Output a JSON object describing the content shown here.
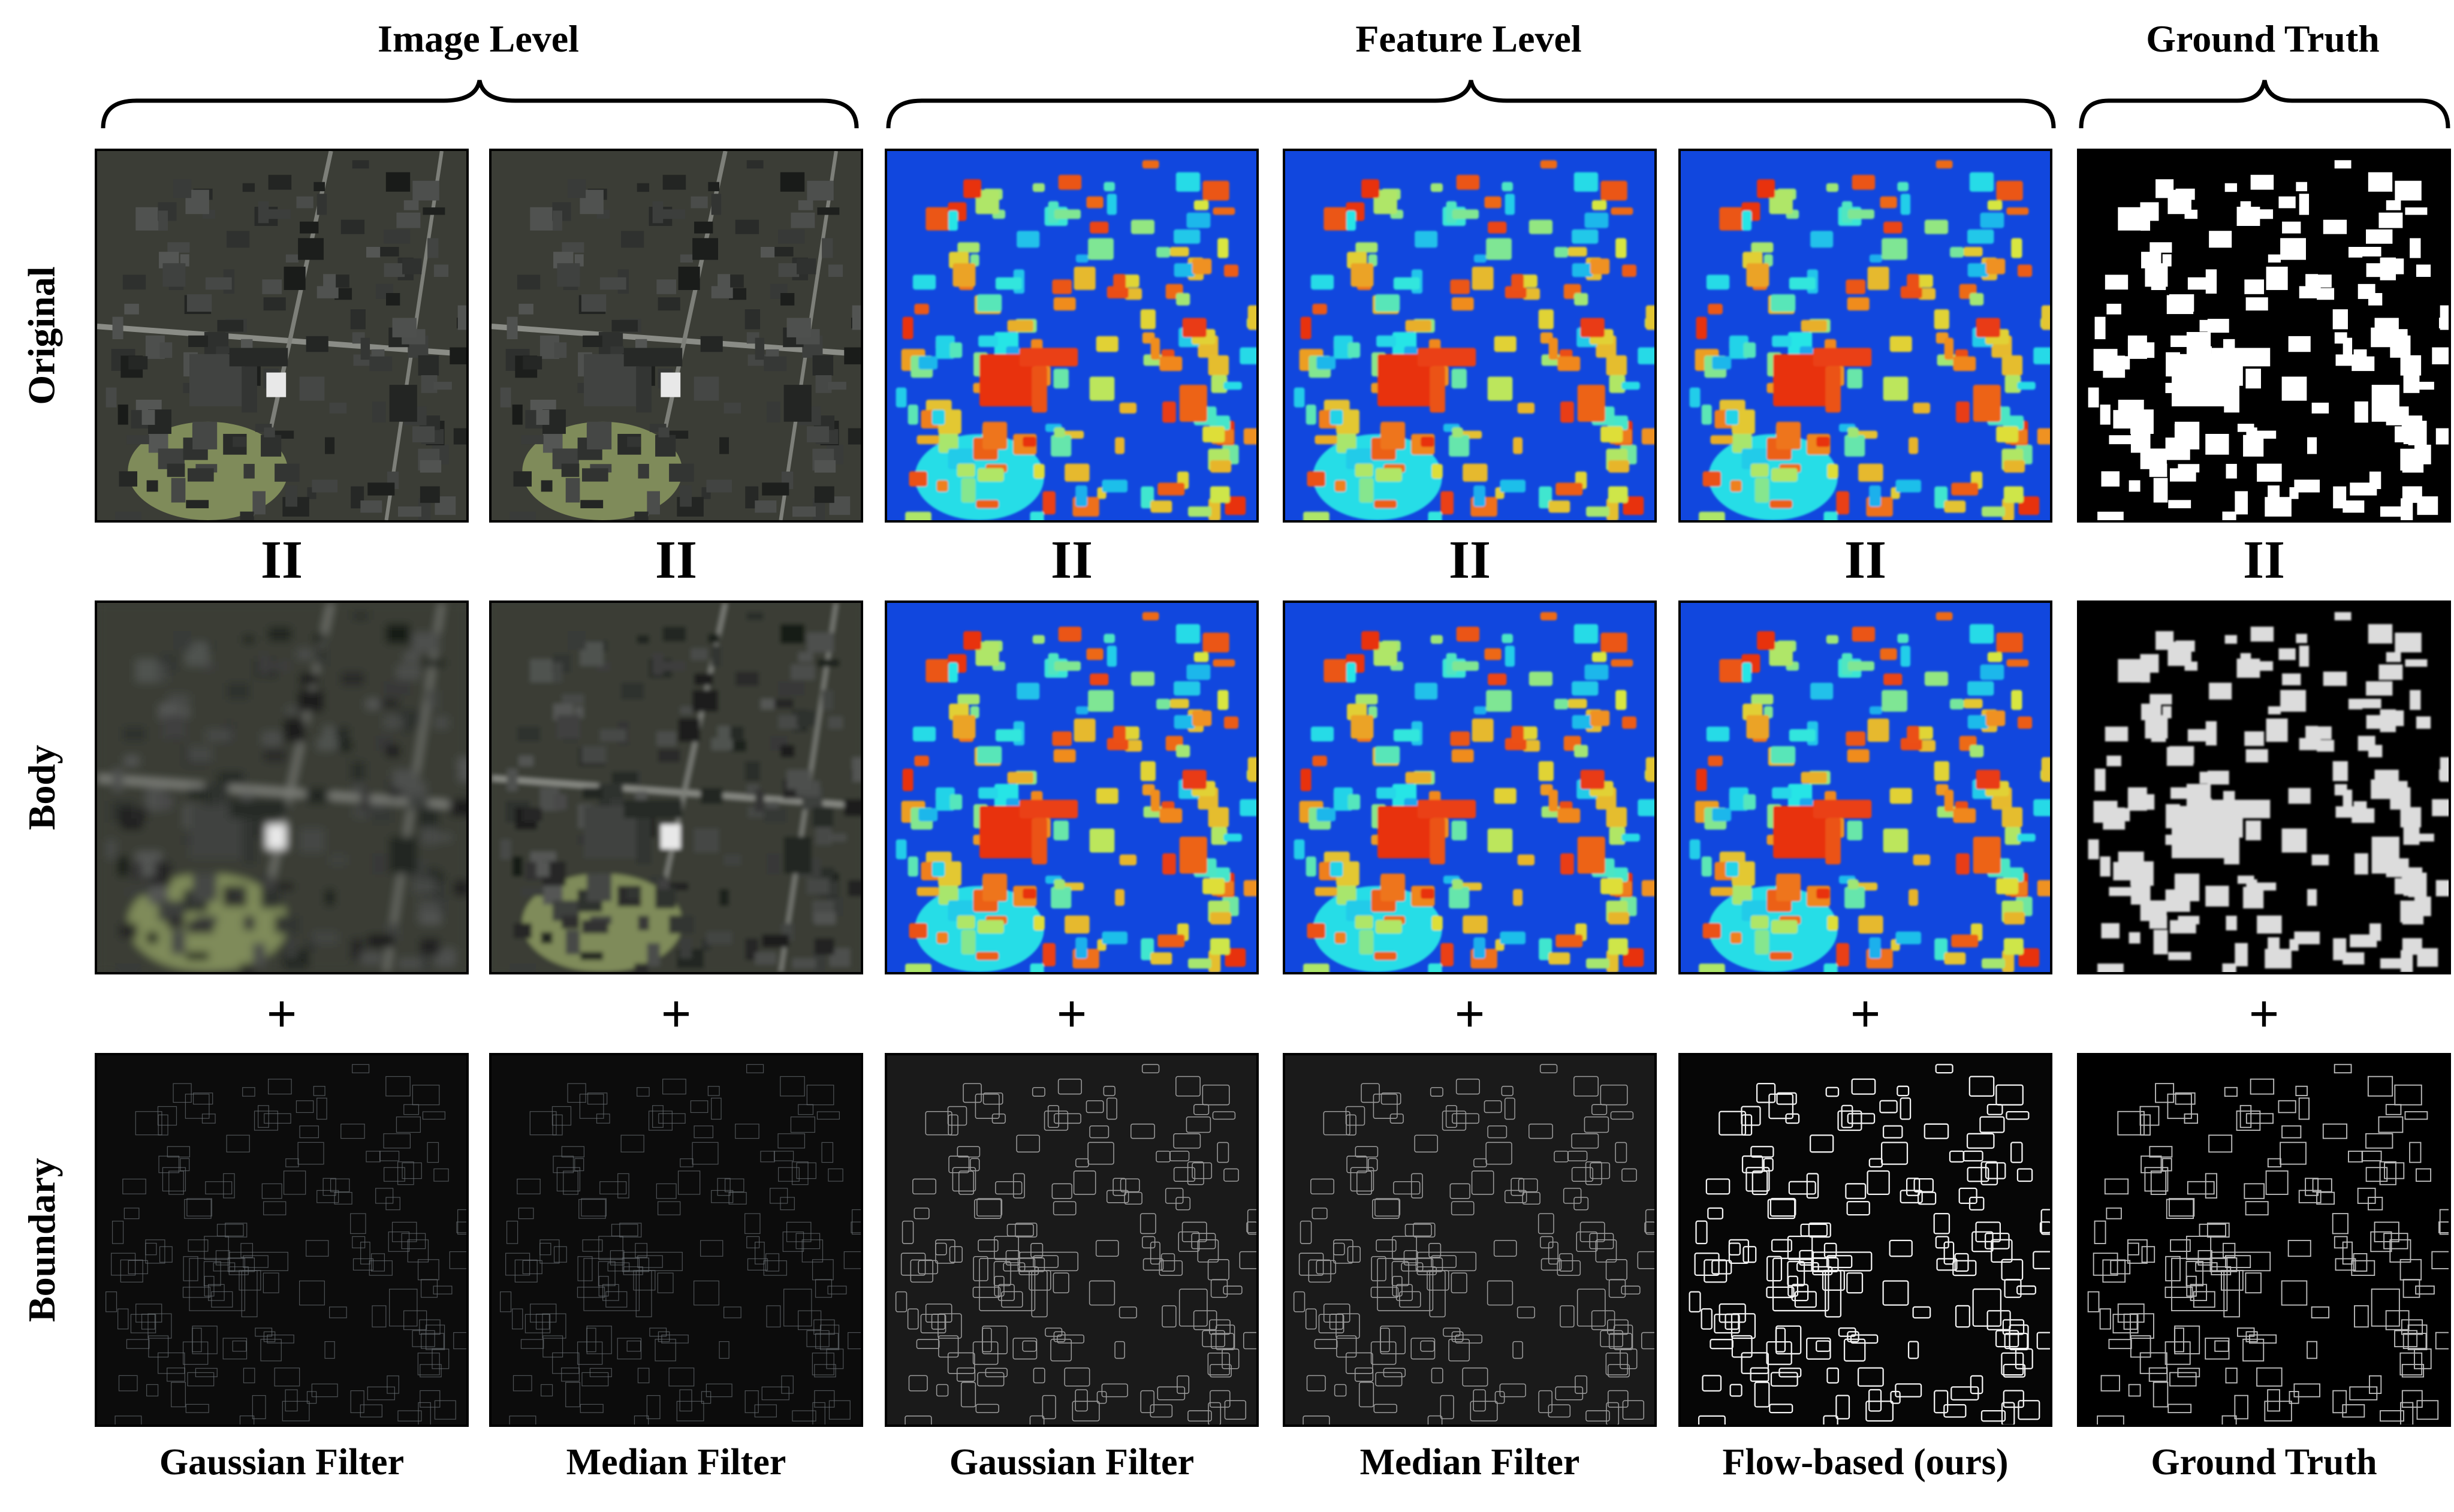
{
  "group_titles": {
    "image_level": "Image Level",
    "feature_level": "Feature Level",
    "ground_truth": "Ground Truth"
  },
  "row_labels": {
    "original": "Original",
    "body": "Body",
    "boundary": "Boundary"
  },
  "operators": {
    "equals": "II",
    "plus": "+"
  },
  "column_labels": {
    "gaussian_image": "Gaussian Filter",
    "median_image": "Median Filter",
    "gaussian_feature": "Gaussian Filter",
    "median_feature": "Median Filter",
    "flow_feature": "Flow-based (ours)",
    "ground_truth": "Ground Truth"
  },
  "colors": {
    "aerial_base": "#3b3d36",
    "heatmap_low": "#1030d8",
    "heatmap_high": "#e83010",
    "ground_truth_fg": "#ffffff",
    "ground_truth_bg": "#000000"
  }
}
